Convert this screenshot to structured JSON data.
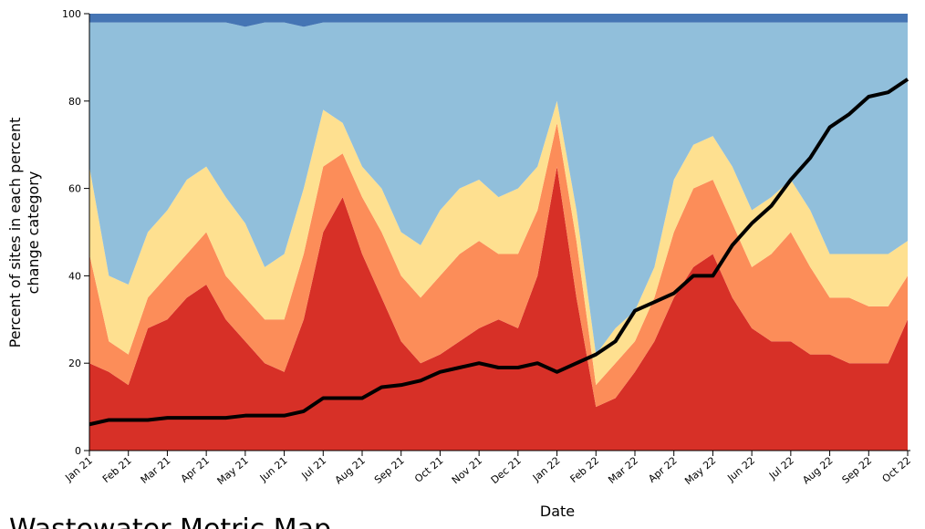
{
  "chart_data": {
    "type": "area",
    "stacked": true,
    "title": "Wastewater Metric Map",
    "xlabel": "Date",
    "ylabel": [
      "Percent of sites in each percent",
      "change category"
    ],
    "categories": [
      "Jan 21",
      null,
      "Feb 21",
      null,
      "Mar 21",
      null,
      "Apr 21",
      null,
      "May 21",
      null,
      "Jun 21",
      null,
      "Jul 21",
      null,
      "Aug 21",
      null,
      "Sep 21",
      null,
      "Oct 21",
      null,
      "Nov 21",
      null,
      "Dec 21",
      null,
      "Jan 22",
      null,
      "Feb 22",
      null,
      "Mar 22",
      null,
      "Apr 22",
      null,
      "May 22",
      null,
      "Jun 22",
      null,
      "Jul 22",
      null,
      "Aug 22",
      null,
      "Sep 22",
      null,
      "Oct 22"
    ],
    "ylim": [
      0,
      100
    ],
    "yticks": [
      0,
      20,
      40,
      60,
      80,
      100
    ],
    "series": [
      {
        "color": "#d73027",
        "values": [
          20,
          18,
          15,
          28,
          30,
          35,
          38,
          30,
          25,
          20,
          18,
          30,
          50,
          58,
          45,
          35,
          25,
          20,
          22,
          25,
          28,
          30,
          28,
          40,
          65,
          35,
          10,
          12,
          18,
          25,
          35,
          42,
          45,
          35,
          28,
          25,
          25,
          22,
          22,
          20,
          20,
          20,
          30
        ]
      },
      {
        "color": "#fc8d59",
        "values": [
          25,
          7,
          7,
          7,
          10,
          10,
          12,
          10,
          10,
          10,
          12,
          15,
          15,
          10,
          13,
          15,
          15,
          15,
          18,
          20,
          20,
          15,
          17,
          15,
          10,
          13,
          5,
          8,
          7,
          10,
          15,
          18,
          17,
          17,
          14,
          20,
          25,
          20,
          13,
          15,
          13,
          13,
          10
        ]
      },
      {
        "color": "#fee090",
        "values": [
          20,
          15,
          16,
          15,
          15,
          17,
          15,
          18,
          17,
          12,
          15,
          15,
          13,
          7,
          7,
          10,
          10,
          12,
          15,
          15,
          14,
          13,
          15,
          10,
          5,
          7,
          7,
          8,
          7,
          7,
          12,
          10,
          10,
          13,
          13,
          13,
          12,
          13,
          10,
          10,
          12,
          12,
          8
        ]
      },
      {
        "color": "#91bfdb",
        "values": [
          33,
          58,
          60,
          48,
          43,
          36,
          33,
          40,
          45,
          56,
          53,
          37,
          20,
          23,
          33,
          38,
          48,
          51,
          43,
          38,
          36,
          40,
          38,
          33,
          18,
          43,
          76,
          70,
          66,
          56,
          36,
          28,
          26,
          33,
          43,
          40,
          36,
          43,
          53,
          53,
          53,
          53,
          50
        ]
      },
      {
        "color": "#4575b4",
        "values": [
          2,
          2,
          2,
          2,
          2,
          2,
          2,
          2,
          3,
          2,
          2,
          3,
          2,
          2,
          2,
          2,
          2,
          2,
          2,
          2,
          2,
          2,
          2,
          2,
          2,
          2,
          2,
          2,
          2,
          2,
          2,
          2,
          2,
          2,
          2,
          2,
          2,
          2,
          2,
          2,
          2,
          2,
          2
        ]
      },
      {
        "type": "line",
        "color": "#000000",
        "values": [
          6,
          7,
          7,
          7,
          7.5,
          7.5,
          7.5,
          7.5,
          8,
          8,
          8,
          9,
          12,
          12,
          12,
          14.5,
          15,
          16,
          18,
          19,
          20,
          19,
          19,
          20,
          18,
          20,
          22,
          25,
          32,
          34,
          36,
          40,
          40,
          47,
          52,
          56,
          62,
          67,
          74,
          77,
          81,
          82,
          85
        ]
      }
    ]
  }
}
